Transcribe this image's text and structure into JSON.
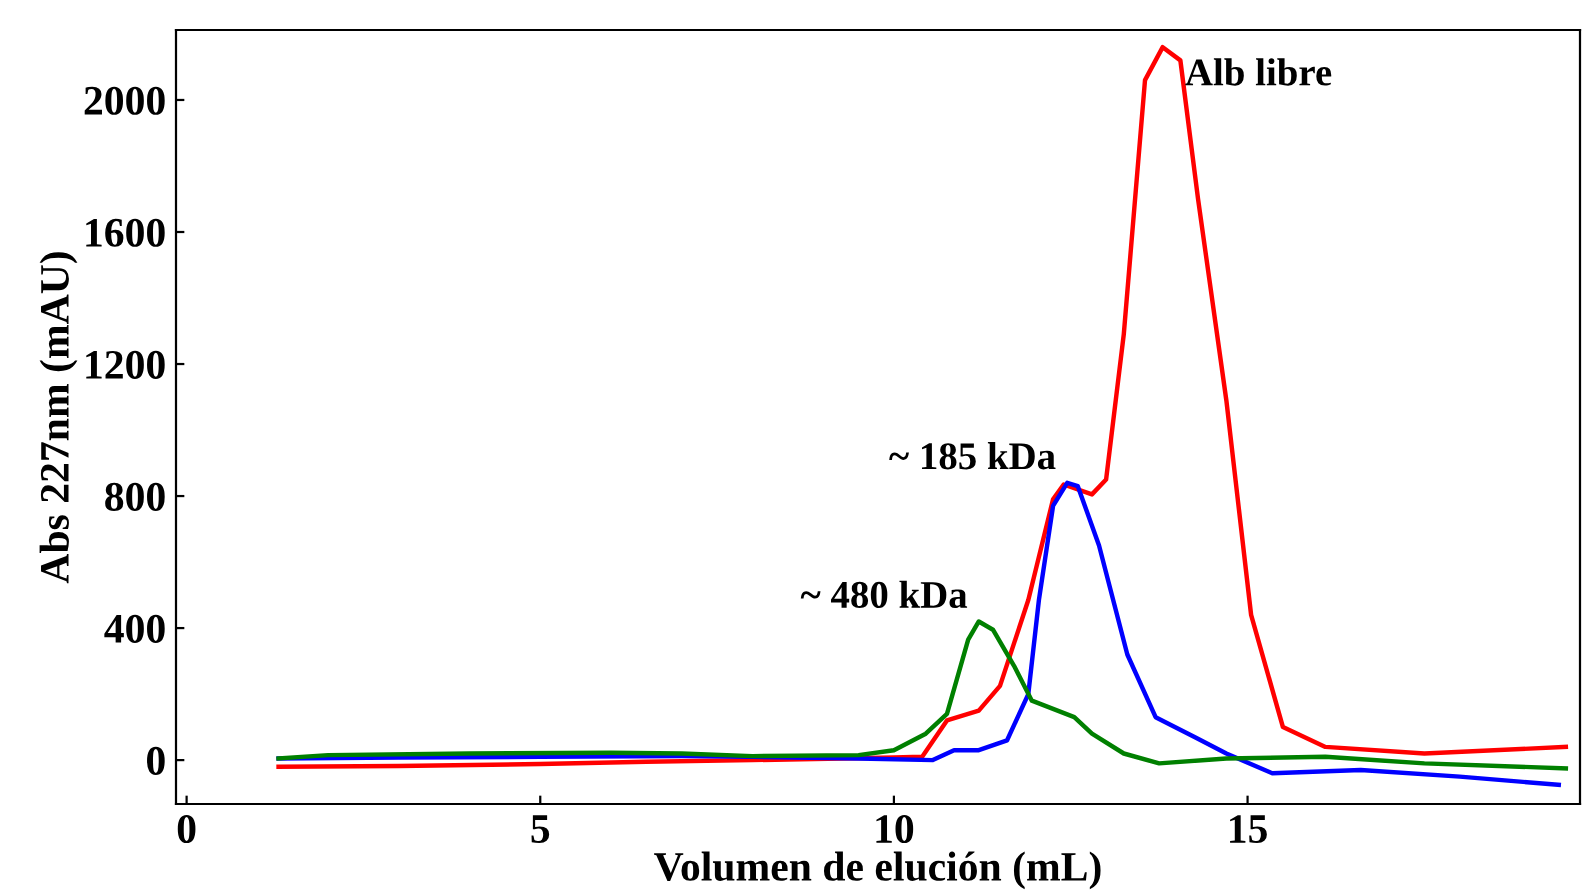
{
  "chart_data": {
    "type": "line",
    "xlabel": "Volumen de elución (mL)",
    "ylabel": "Abs 227nm (mAU)",
    "xlim": [
      -0.15,
      19.7
    ],
    "ylim": [
      -133,
      2212
    ],
    "xticks": [
      0,
      5,
      10,
      15
    ],
    "yticks": [
      0,
      400,
      800,
      1200,
      1600,
      2000
    ],
    "grid": false,
    "legend": false,
    "marker": "none",
    "line_style": "solid",
    "series": [
      {
        "color": "#ff0000",
        "x": [
          1.3,
          3,
          5,
          6.5,
          8,
          10,
          10.4,
          10.75,
          11.2,
          11.5,
          11.9,
          12.25,
          12.4,
          12.8,
          13.0,
          13.25,
          13.55,
          13.8,
          14.05,
          14.3,
          14.7,
          15.05,
          15.5,
          16.1,
          17.5,
          19.5
        ],
        "values": [
          -20,
          -18,
          -12,
          -5,
          0,
          8,
          10,
          120,
          150,
          225,
          485,
          790,
          835,
          805,
          850,
          1290,
          2060,
          2160,
          2120,
          1700,
          1090,
          440,
          100,
          40,
          20,
          40
        ]
      },
      {
        "color": "#0000ff",
        "x": [
          1.3,
          3,
          5,
          7,
          8,
          9.5,
          10.55,
          10.85,
          11.2,
          11.6,
          11.9,
          12.05,
          12.25,
          12.45,
          12.6,
          12.9,
          13.3,
          13.7,
          14.25,
          14.7,
          15.35,
          16.6,
          18.0,
          19.4
        ],
        "values": [
          5,
          8,
          10,
          12,
          10,
          5,
          0,
          30,
          30,
          60,
          200,
          485,
          770,
          840,
          830,
          650,
          320,
          130,
          70,
          20,
          -40,
          -30,
          -50,
          -75
        ]
      },
      {
        "color": "#008000",
        "x": [
          1.3,
          2,
          4,
          6,
          7,
          8,
          9.5,
          10.0,
          10.45,
          10.75,
          11.05,
          11.2,
          11.4,
          11.7,
          11.95,
          12.55,
          12.8,
          13.25,
          13.75,
          14.7,
          16.1,
          17.5,
          19.5
        ],
        "values": [
          5,
          15,
          20,
          22,
          20,
          12,
          15,
          30,
          80,
          140,
          365,
          420,
          395,
          285,
          180,
          130,
          80,
          20,
          -10,
          5,
          10,
          -10,
          -25
        ]
      }
    ],
    "annotations": [
      {
        "text": "~ 185 kDa",
        "x": 12.45,
        "y": 840
      },
      {
        "text": "~ 480 kDa",
        "x": 11.2,
        "y": 420
      },
      {
        "text": "Alb libre",
        "x": 13.8,
        "y": 2160
      }
    ]
  }
}
